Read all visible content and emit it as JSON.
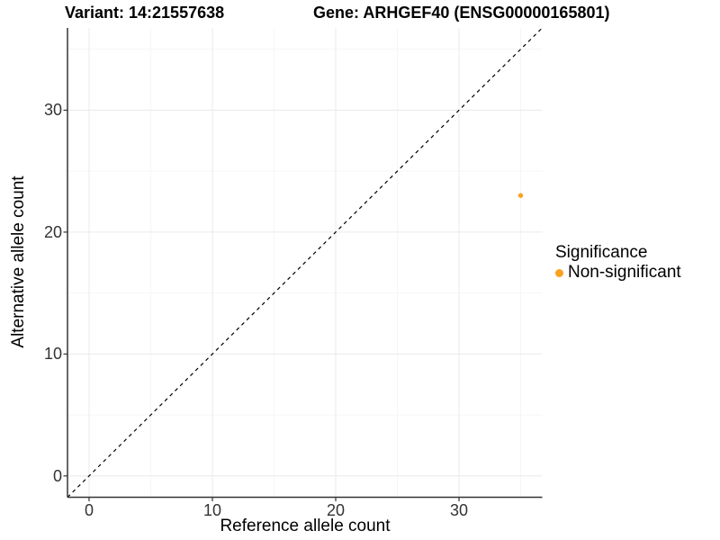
{
  "chart_data": {
    "type": "scatter",
    "title_variant": "Variant: 14:21557638",
    "title_gene": "Gene: ARHGEF40 (ENSG00000165801)",
    "xlabel": "Reference allele count",
    "ylabel": "Alternative allele count",
    "xlim": [
      -1.75,
      36.75
    ],
    "ylim": [
      -1.75,
      36.75
    ],
    "x_ticks": [
      0,
      10,
      20,
      30
    ],
    "y_ticks": [
      0,
      10,
      20,
      30
    ],
    "x_minor_breaks": [
      5,
      15,
      25,
      35
    ],
    "y_minor_breaks": [
      5,
      15,
      25,
      35
    ],
    "grid": true,
    "identity_line": {
      "dashed": true,
      "color": "#000000"
    },
    "series": [
      {
        "name": "Non-significant",
        "color": "#FAA21E",
        "points": [
          {
            "x": 35,
            "y": 23
          }
        ]
      }
    ],
    "legend": {
      "title": "Significance",
      "position": "right"
    },
    "colors": {
      "grid_major": "#EBEBEB",
      "grid_minor": "#F4F4F4",
      "axis_line": "#333333",
      "tick_mark": "#333333",
      "point": "#FAA21E"
    }
  }
}
